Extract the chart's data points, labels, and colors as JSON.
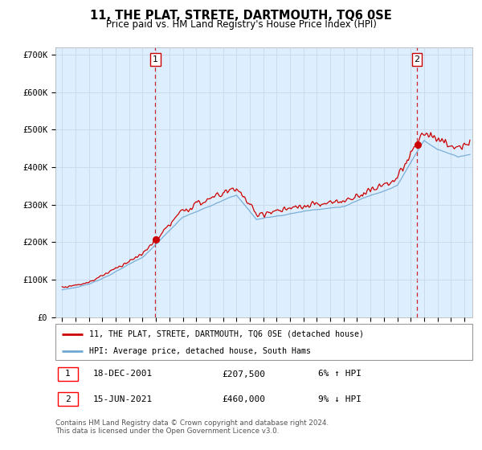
{
  "title": "11, THE PLAT, STRETE, DARTMOUTH, TQ6 0SE",
  "subtitle": "Price paid vs. HM Land Registry's House Price Index (HPI)",
  "legend_line1": "11, THE PLAT, STRETE, DARTMOUTH, TQ6 0SE (detached house)",
  "legend_line2": "HPI: Average price, detached house, South Hams",
  "sale1_date": "18-DEC-2001",
  "sale1_price": "£207,500",
  "sale1_hpi": "6% ↑ HPI",
  "sale1_year": 2001.96,
  "sale1_value": 207500,
  "sale2_date": "15-JUN-2021",
  "sale2_price": "£460,000",
  "sale2_hpi": "9% ↓ HPI",
  "sale2_year": 2021.46,
  "sale2_value": 460000,
  "hpi_color": "#6fa8d4",
  "price_color": "#cc0000",
  "marker_color": "#cc0000",
  "vline_color": "#cc0000",
  "grid_color": "#c8d8e8",
  "bg_plot_color": "#ddeeff",
  "background_color": "#ffffff",
  "ylim": [
    0,
    720000
  ],
  "yticks": [
    0,
    100000,
    200000,
    300000,
    400000,
    500000,
    600000,
    700000
  ],
  "ytick_labels": [
    "£0",
    "£100K",
    "£200K",
    "£300K",
    "£400K",
    "£500K",
    "£600K",
    "£700K"
  ],
  "xlim_start": 1994.5,
  "xlim_end": 2025.6,
  "footer": "Contains HM Land Registry data © Crown copyright and database right 2024.\nThis data is licensed under the Open Government Licence v3.0."
}
